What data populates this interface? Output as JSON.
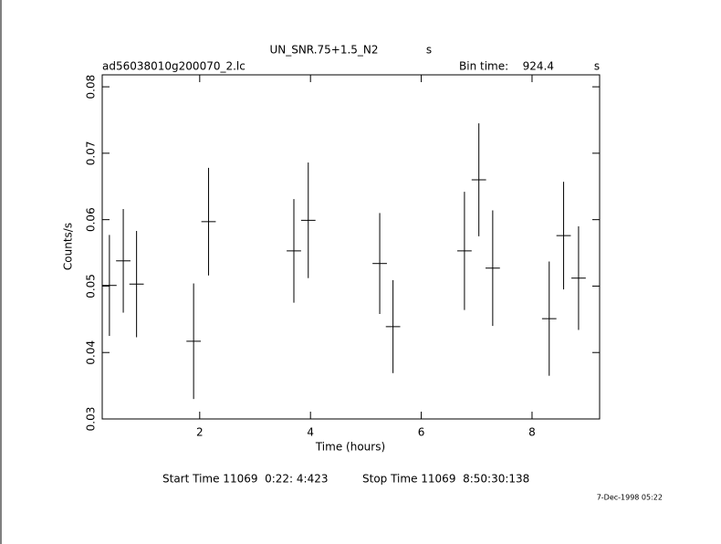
{
  "chart_data": {
    "type": "errorbar",
    "title": "UN_SNR.75+1.5_N2",
    "title_unit": "s",
    "subtitle": "ad56038010g200070_2.lc",
    "bin_time_label": "Bin time:",
    "bin_time": "924.4",
    "bin_time_unit": "s",
    "xlabel": "Time (hours)",
    "ylabel": "Counts/s",
    "start_time": "Start Time 11069  0:22: 4:423",
    "stop_time": "Stop Time 11069  8:50:30:138",
    "date": "7-Dec-1998 05:22",
    "color": "#000000",
    "x": [
      0.37,
      0.62,
      0.86,
      1.89,
      2.16,
      3.7,
      3.96,
      5.25,
      5.49,
      6.78,
      7.04,
      7.29,
      8.31,
      8.57,
      8.84
    ],
    "xerr": [
      0.13,
      0.13,
      0.13,
      0.13,
      0.13,
      0.13,
      0.13,
      0.13,
      0.13,
      0.13,
      0.13,
      0.13,
      0.13,
      0.13,
      0.13
    ],
    "y": [
      0.0501,
      0.0538,
      0.0503,
      0.0417,
      0.0597,
      0.0553,
      0.0599,
      0.0534,
      0.0439,
      0.0553,
      0.066,
      0.0527,
      0.0451,
      0.0576,
      0.0512
    ],
    "yerr": [
      0.0076,
      0.0078,
      0.008,
      0.0087,
      0.0081,
      0.0078,
      0.0087,
      0.0076,
      0.007,
      0.0089,
      0.0085,
      0.0087,
      0.0086,
      0.0081,
      0.0078
    ],
    "xlim": [
      0.24,
      9.22
    ],
    "ylim": [
      0.03,
      0.0818
    ],
    "xticks": [
      2,
      4,
      6,
      8
    ],
    "yticks": [
      0.03,
      0.04,
      0.05,
      0.06,
      0.07,
      0.08
    ]
  }
}
